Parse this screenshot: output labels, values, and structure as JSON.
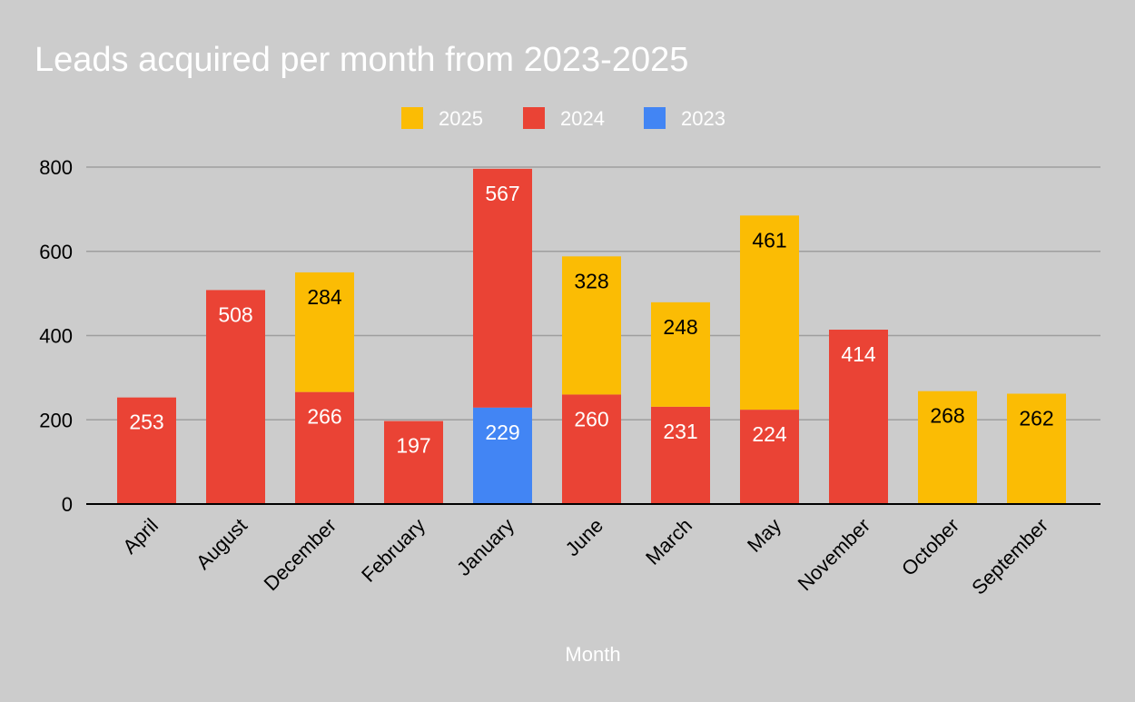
{
  "chart_data": {
    "type": "bar",
    "stacked": true,
    "title": "Leads acquired per month from 2023-2025",
    "xlabel": "Month",
    "ylabel": "",
    "ylim": [
      0,
      800
    ],
    "yticks": [
      0,
      200,
      400,
      600,
      800
    ],
    "grid": true,
    "legend_position": "top",
    "categories": [
      "April",
      "August",
      "December",
      "February",
      "January",
      "June",
      "March",
      "May",
      "November",
      "October",
      "September"
    ],
    "series": [
      {
        "name": "2023",
        "color": "#4285f4",
        "label_color": "#ffffff",
        "values": [
          null,
          null,
          null,
          null,
          229,
          null,
          null,
          null,
          null,
          null,
          null
        ]
      },
      {
        "name": "2024",
        "color": "#ea4335",
        "label_color": "#ffffff",
        "values": [
          253,
          508,
          266,
          197,
          567,
          260,
          231,
          224,
          414,
          null,
          null
        ]
      },
      {
        "name": "2025",
        "color": "#fbbc04",
        "label_color": "#000000",
        "values": [
          null,
          null,
          284,
          null,
          null,
          328,
          248,
          461,
          null,
          268,
          262
        ]
      }
    ],
    "legend_order": [
      "2025",
      "2024",
      "2023"
    ]
  }
}
